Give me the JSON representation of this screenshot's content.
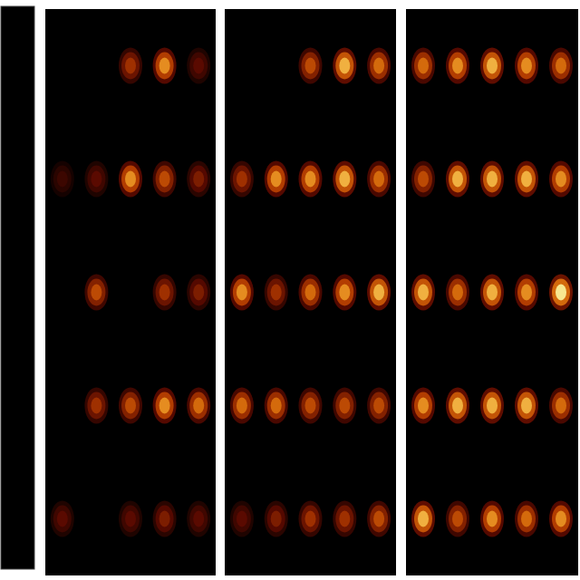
{
  "chart_data": [
    {
      "type": "heatmap",
      "tick_labels": false,
      "cells": [
        [
          0,
          0,
          0.5,
          0.8,
          0.3
        ],
        [
          0.2,
          0.3,
          0.8,
          0.6,
          0.4
        ],
        [
          0,
          0.6,
          0,
          0.5,
          0.4
        ],
        [
          0,
          0.5,
          0.6,
          0.8,
          0.7
        ],
        [
          0.3,
          0,
          0.3,
          0.4,
          0.3
        ]
      ]
    },
    {
      "type": "heatmap",
      "tick_labels": false,
      "cells": [
        [
          0,
          0,
          0.6,
          0.9,
          0.7
        ],
        [
          0.5,
          0.8,
          0.8,
          0.9,
          0.7
        ],
        [
          0.8,
          0.5,
          0.7,
          0.8,
          0.9
        ],
        [
          0.7,
          0.7,
          0.6,
          0.6,
          0.6
        ],
        [
          0.3,
          0.4,
          0.5,
          0.5,
          0.6
        ]
      ]
    },
    {
      "type": "heatmap",
      "tick_labels": false,
      "cells": [
        [
          0.7,
          0.8,
          0.9,
          0.8,
          0.7
        ],
        [
          0.6,
          0.9,
          0.9,
          0.9,
          0.8
        ],
        [
          0.9,
          0.7,
          0.9,
          0.8,
          1.0
        ],
        [
          0.8,
          0.9,
          0.9,
          0.9,
          0.7
        ],
        [
          0.9,
          0.6,
          0.8,
          0.7,
          0.8
        ]
      ]
    }
  ],
  "colorbar": {
    "range": [
      0,
      1
    ]
  }
}
